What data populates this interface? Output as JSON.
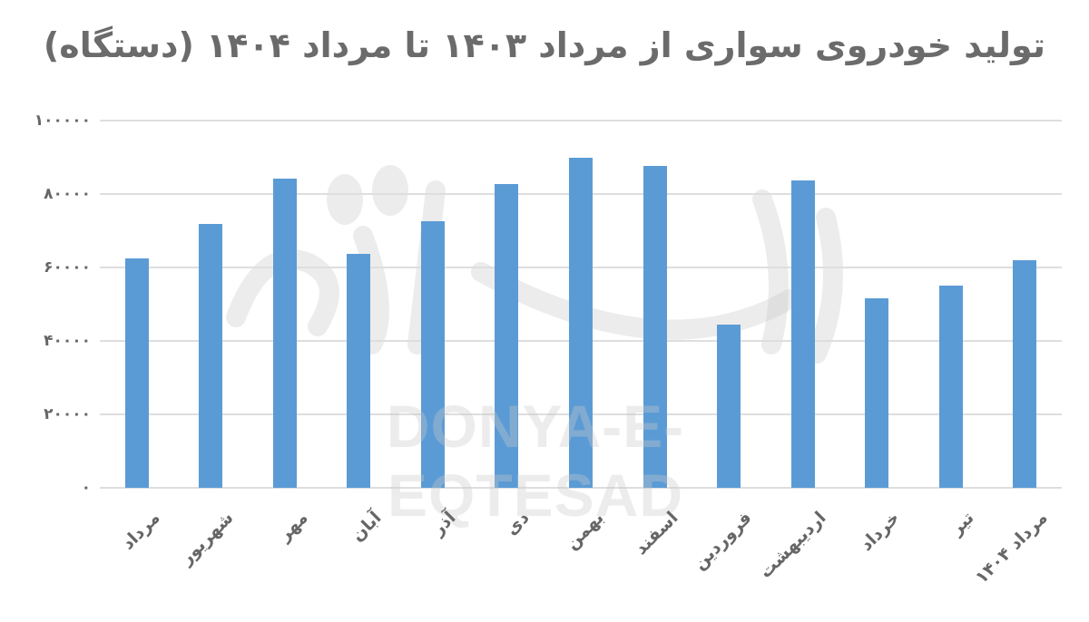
{
  "chart_data": {
    "type": "bar",
    "title": "تولید خودروی سواری از مرداد ۱۴۰۳ تا مرداد ۱۴۰۴ (دستگاه)",
    "xlabel": "",
    "ylabel": "",
    "ylim": [
      0,
      100000
    ],
    "yticks": [
      0,
      20000,
      40000,
      60000,
      80000,
      100000
    ],
    "ytick_labels": [
      "۰",
      "۲۰۰۰۰",
      "۴۰۰۰۰",
      "۶۰۰۰۰",
      "۸۰۰۰۰",
      "۱۰۰۰۰۰"
    ],
    "grid": true,
    "legend": "none",
    "categories": [
      "مرداد",
      "شهریور",
      "مهر",
      "آبان",
      "آذر",
      "دی",
      "بهمن",
      "اسفند",
      "فروردین",
      "اردیبهشت",
      "خرداد",
      "تیر",
      "مرداد ۱۴۰۴"
    ],
    "values": [
      62500,
      71800,
      84200,
      63700,
      72600,
      82700,
      89900,
      87700,
      44400,
      83700,
      51600,
      55100,
      62000
    ],
    "bar_color": "#5b9bd5"
  },
  "watermark": {
    "text": "DONYA-E-EQTESAD"
  },
  "colors": {
    "bar": "#5b9bd5",
    "grid": "#dedede",
    "text": "#666666"
  }
}
